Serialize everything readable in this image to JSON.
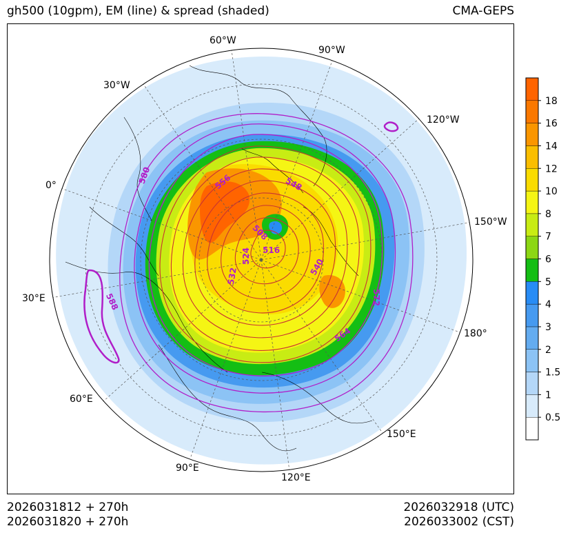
{
  "header": {
    "title": "gh500 (10gpm), EM (line) & spread (shaded)",
    "model": "CMA-GEPS"
  },
  "footer": {
    "init_utc": "2026031812 + 270h",
    "init_cst": "2026031820 + 270h",
    "valid_utc": "2026032918 (UTC)",
    "valid_cst": "2026033002 (CST)"
  },
  "map": {
    "projection": "north-polar-stereographic",
    "longitude_labels": [
      "60°W",
      "90°W",
      "30°W",
      "120°W",
      "0°",
      "150°W",
      "30°E",
      "180°",
      "60°E",
      "150°E",
      "90°E",
      "120°E"
    ],
    "contour_labels": [
      "580",
      "556",
      "548",
      "508",
      "516",
      "524",
      "532",
      "540",
      "572",
      "588",
      "564"
    ],
    "contour_color": "#b01ec8",
    "em_line_color": "#c83232"
  },
  "colorbar": {
    "levels": [
      "0.5",
      "1",
      "1.5",
      "2",
      "3",
      "4",
      "5",
      "6",
      "7",
      "8",
      "10",
      "12",
      "14",
      "16",
      "18"
    ],
    "colors": [
      "#ffffff",
      "#d8ebfb",
      "#b4d7f8",
      "#8cc3f5",
      "#64acf0",
      "#469af0",
      "#288cf5",
      "#14be14",
      "#8cd714",
      "#c8ec14",
      "#f5f514",
      "#fadc00",
      "#fabe00",
      "#fa9600",
      "#fa7800",
      "#ff6400"
    ]
  }
}
